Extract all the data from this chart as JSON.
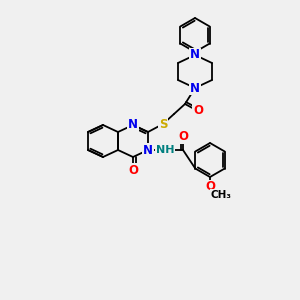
{
  "background_color": "#f0f0f0",
  "bond_color": "#000000",
  "atom_colors": {
    "N": "#0000ee",
    "O": "#ff0000",
    "S": "#ccaa00",
    "H": "#008080",
    "C": "#000000"
  },
  "figsize": [
    3.0,
    3.0
  ],
  "dpi": 100
}
